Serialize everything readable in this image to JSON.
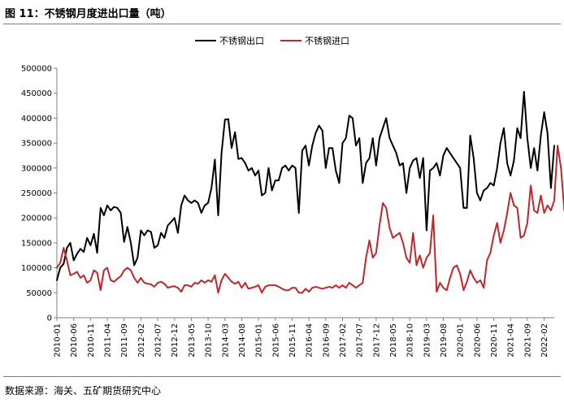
{
  "header": {
    "title": "图 11：不锈钢月度进出口量（吨）"
  },
  "footer": {
    "source": "数据来源：海关、五矿期货研究中心"
  },
  "colors": {
    "export": "#000000",
    "import": "#c0272d",
    "axis": "#7f7f7f"
  },
  "chart_data": {
    "type": "line",
    "title": "",
    "xlabel": "",
    "ylabel": "",
    "ylim": [
      0,
      500000
    ],
    "yticks": [
      "0",
      "50000",
      "100000",
      "150000",
      "200000",
      "250000",
      "300000",
      "350000",
      "400000",
      "450000",
      "500000"
    ],
    "xticks": [
      "2010-01",
      "2010-06",
      "2010-11",
      "2011-04",
      "2011-09",
      "2012-02",
      "2012-07",
      "2012-12",
      "2013-05",
      "2013-10",
      "2014-03",
      "2014-08",
      "2015-01",
      "2015-06",
      "2015-11",
      "2016-04",
      "2016-09",
      "2017-02",
      "2017-07",
      "2017-12",
      "2018-05",
      "2018-10",
      "2019-03",
      "2019-08",
      "2020-01",
      "2020-06",
      "2020-11",
      "2021-04",
      "2021-09",
      "2022-02"
    ],
    "legend_position": "top",
    "x_start": "2010-01",
    "series": [
      {
        "name": "不锈钢出口",
        "color": "#000000",
        "values": [
          75000,
          100000,
          108000,
          140000,
          150000,
          115000,
          128000,
          138000,
          132000,
          160000,
          145000,
          168000,
          130000,
          220000,
          205000,
          225000,
          215000,
          222000,
          220000,
          210000,
          152000,
          182000,
          150000,
          105000,
          120000,
          175000,
          165000,
          175000,
          172000,
          140000,
          145000,
          170000,
          160000,
          185000,
          192000,
          200000,
          170000,
          225000,
          245000,
          235000,
          230000,
          235000,
          230000,
          210000,
          225000,
          230000,
          260000,
          317000,
          205000,
          330000,
          397000,
          398000,
          340000,
          372000,
          318000,
          320000,
          310000,
          295000,
          300000,
          285000,
          295000,
          245000,
          250000,
          300000,
          255000,
          275000,
          275000,
          300000,
          305000,
          295000,
          305000,
          300000,
          210000,
          335000,
          345000,
          305000,
          345000,
          370000,
          385000,
          375000,
          300000,
          340000,
          340000,
          295000,
          270000,
          350000,
          360000,
          405000,
          400000,
          345000,
          360000,
          270000,
          310000,
          320000,
          360000,
          305000,
          360000,
          380000,
          400000,
          360000,
          345000,
          330000,
          305000,
          310000,
          250000,
          300000,
          315000,
          320000,
          280000,
          320000,
          175000,
          295000,
          300000,
          310000,
          285000,
          325000,
          340000,
          330000,
          320000,
          310000,
          300000,
          220000,
          220000,
          365000,
          320000,
          250000,
          235000,
          255000,
          260000,
          270000,
          265000,
          300000,
          350000,
          380000,
          310000,
          285000,
          315000,
          380000,
          360000,
          453000,
          360000,
          300000,
          340000,
          295000,
          365000,
          412000,
          370000,
          260000,
          345000
        ]
      },
      {
        "name": "不锈钢进口",
        "color": "#c0272d",
        "values": [
          100000,
          110000,
          140000,
          115000,
          85000,
          88000,
          92000,
          80000,
          85000,
          70000,
          75000,
          95000,
          90000,
          55000,
          95000,
          100000,
          75000,
          72000,
          78000,
          83000,
          95000,
          100000,
          95000,
          80000,
          70000,
          80000,
          70000,
          68000,
          67000,
          62000,
          70000,
          72000,
          68000,
          60000,
          62000,
          63000,
          60000,
          52000,
          65000,
          65000,
          62000,
          70000,
          68000,
          75000,
          70000,
          75000,
          72000,
          85000,
          50000,
          75000,
          88000,
          80000,
          72000,
          68000,
          72000,
          60000,
          70000,
          58000,
          60000,
          62000,
          65000,
          50000,
          62000,
          65000,
          65000,
          65000,
          62000,
          58000,
          55000,
          55000,
          60000,
          60000,
          50000,
          50000,
          58000,
          52000,
          60000,
          62000,
          60000,
          58000,
          60000,
          62000,
          60000,
          65000,
          60000,
          65000,
          60000,
          70000,
          65000,
          60000,
          65000,
          70000,
          120000,
          155000,
          120000,
          130000,
          185000,
          230000,
          220000,
          180000,
          160000,
          165000,
          170000,
          150000,
          120000,
          110000,
          170000,
          105000,
          125000,
          100000,
          120000,
          130000,
          205000,
          52000,
          70000,
          60000,
          55000,
          80000,
          100000,
          105000,
          88000,
          55000,
          72000,
          95000,
          80000,
          70000,
          75000,
          60000,
          115000,
          130000,
          165000,
          190000,
          150000,
          175000,
          210000,
          250000,
          225000,
          220000,
          160000,
          165000,
          190000,
          265000,
          215000,
          210000,
          245000,
          210000,
          225000,
          215000,
          235000,
          345000,
          300000,
          215000
        ]
      }
    ]
  }
}
